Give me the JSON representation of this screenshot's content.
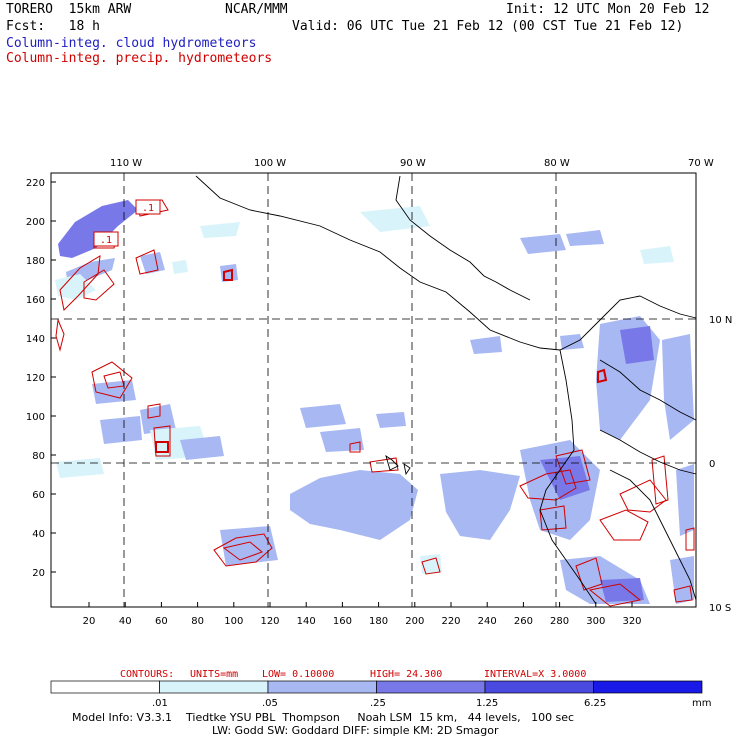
{
  "header": {
    "model": "TORERO  15km ARW",
    "org": "NCAR/MMM",
    "init": "Init: 12 UTC Mon 20 Feb 12",
    "fcst": "Fcst:   18 h",
    "valid": "Valid: 06 UTC Tue 21 Feb 12 (00 CST Tue 21 Feb 12)",
    "field1": "Column-integ. cloud hydrometeors",
    "field2": "Column-integ. precip. hydrometeors"
  },
  "map": {
    "lon_labels": [
      "110 W",
      "100 W",
      "90 W",
      "80 W",
      "70 W"
    ],
    "lat_labels": [
      "10 N",
      "0",
      "10 S"
    ],
    "x_ticks": [
      "20",
      "40",
      "60",
      "80",
      "100",
      "120",
      "140",
      "160",
      "180",
      "200",
      "220",
      "240",
      "260",
      "280",
      "300",
      "320"
    ],
    "y_ticks": [
      "20",
      "40",
      "60",
      "80",
      "100",
      "120",
      "140",
      "160",
      "180",
      "200",
      "220"
    ],
    "contour_labels": [
      ".1",
      ".1"
    ]
  },
  "contour_info": {
    "contours": "CONTOURS:",
    "units": "UNITS=mm",
    "low": "LOW= 0.10000",
    "high": "HIGH=  24.300",
    "interval": "INTERVAL=X  3.0000"
  },
  "colorbar": {
    "labels": [
      ".01",
      ".05",
      ".25",
      "1.25",
      "6.25"
    ],
    "unit": "mm",
    "colors": [
      "#ffffff",
      "#d8f4fa",
      "#a8b8f2",
      "#7878e8",
      "#4a4ae0",
      "#1a1ae8"
    ]
  },
  "footer": {
    "line1": "Model Info: V3.3.1    Tiedtke YSU PBL  Thompson     Noah LSM  15 km,   44 levels,   100 sec",
    "line2": "LW: Godd SW: Goddard DIFF: simple KM: 2D Smagor"
  },
  "colors": {
    "cloud_light": "#d8f4fa",
    "cloud_mid": "#a8b8f2",
    "cloud_dark": "#7878e8",
    "precip_contour": "#d00000"
  }
}
